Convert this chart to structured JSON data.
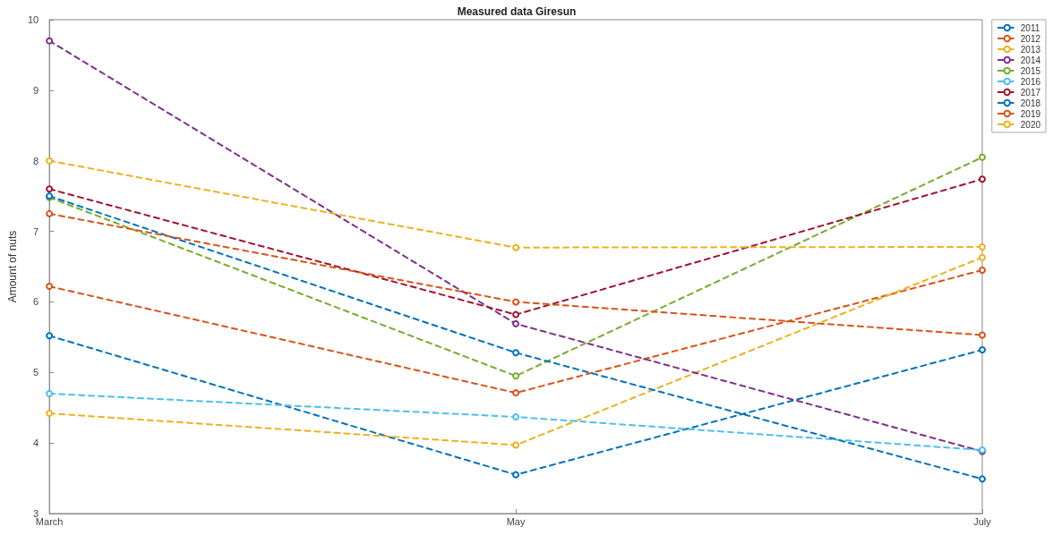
{
  "chart_data": {
    "type": "line",
    "title": "Measured data Giresun",
    "ylabel": "Amount of nuts",
    "categories": [
      "March",
      "May",
      "July"
    ],
    "ylim": [
      3,
      10
    ],
    "yticks": [
      3,
      4,
      5,
      6,
      7,
      8,
      9,
      10
    ],
    "grid": false,
    "legend": "top right",
    "marker": "circle",
    "line_style": "dashed",
    "series": [
      {
        "name": "2011",
        "color": "#0072bd",
        "values": [
          5.52,
          3.55,
          5.32
        ]
      },
      {
        "name": "2012",
        "color": "#d95319",
        "values": [
          6.22,
          4.71,
          6.45
        ]
      },
      {
        "name": "2013",
        "color": "#edb120",
        "values": [
          4.42,
          3.97,
          6.63
        ]
      },
      {
        "name": "2014",
        "color": "#7e2f8e",
        "values": [
          9.7,
          5.69,
          3.88
        ]
      },
      {
        "name": "2015",
        "color": "#77ac30",
        "values": [
          7.48,
          4.95,
          8.05
        ]
      },
      {
        "name": "2016",
        "color": "#4dbeee",
        "values": [
          4.7,
          4.37,
          3.9
        ]
      },
      {
        "name": "2017",
        "color": "#a2142f",
        "values": [
          7.6,
          5.82,
          7.74
        ]
      },
      {
        "name": "2018",
        "color": "#0072bd",
        "values": [
          7.5,
          5.28,
          3.49
        ]
      },
      {
        "name": "2019",
        "color": "#d95319",
        "values": [
          7.25,
          6.0,
          5.53
        ]
      },
      {
        "name": "2020",
        "color": "#edb120",
        "values": [
          8.0,
          6.77,
          6.78
        ]
      }
    ]
  }
}
